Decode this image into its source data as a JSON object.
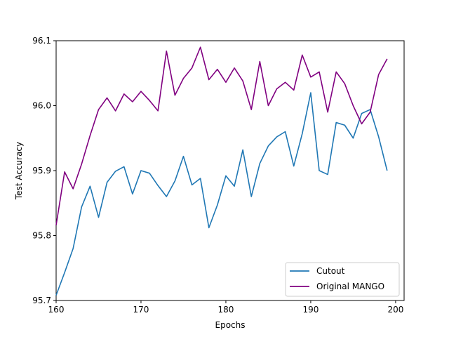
{
  "chart_data": {
    "type": "line",
    "xlabel": "Epochs",
    "ylabel": "Test Accuracy",
    "xlim": [
      160,
      201
    ],
    "ylim": [
      95.7,
      96.1
    ],
    "xticks": [
      160,
      170,
      180,
      190,
      200
    ],
    "yticks": [
      95.7,
      95.8,
      95.9,
      96.0,
      96.1
    ],
    "xtick_labels": [
      "160",
      "170",
      "180",
      "190",
      "200"
    ],
    "ytick_labels": [
      "95.7",
      "95.8",
      "95.9",
      "96.0",
      "96.1"
    ],
    "grid": false,
    "legend_position": "lower-right",
    "x": [
      160,
      161,
      162,
      163,
      164,
      165,
      166,
      167,
      168,
      169,
      170,
      171,
      172,
      173,
      174,
      175,
      176,
      177,
      178,
      179,
      180,
      181,
      182,
      183,
      184,
      185,
      186,
      187,
      188,
      189,
      190,
      191,
      192,
      193,
      194,
      195,
      196,
      197,
      198,
      199
    ],
    "series": [
      {
        "name": "Cutout",
        "color": "#1f77b4",
        "values": [
          95.708,
          95.743,
          95.78,
          95.844,
          95.876,
          95.828,
          95.882,
          95.899,
          95.906,
          95.864,
          95.9,
          95.896,
          95.877,
          95.86,
          95.884,
          95.922,
          95.878,
          95.888,
          95.812,
          95.847,
          95.892,
          95.876,
          95.932,
          95.86,
          95.911,
          95.938,
          95.952,
          95.96,
          95.907,
          95.957,
          96.02,
          95.9,
          95.894,
          95.974,
          95.97,
          95.95,
          95.988,
          95.994,
          95.952,
          95.9
        ]
      },
      {
        "name": "Original MANGO",
        "color": "#800080",
        "values": [
          95.816,
          95.898,
          95.872,
          95.91,
          95.954,
          95.994,
          96.012,
          95.992,
          96.018,
          96.006,
          96.022,
          96.008,
          95.992,
          96.084,
          96.016,
          96.042,
          96.058,
          96.09,
          96.04,
          96.056,
          96.036,
          96.058,
          96.038,
          95.994,
          96.068,
          96.0,
          96.026,
          96.036,
          96.024,
          96.078,
          96.044,
          96.052,
          95.99,
          96.052,
          96.034,
          96.0,
          95.972,
          95.99,
          96.048,
          96.072
        ]
      }
    ]
  }
}
